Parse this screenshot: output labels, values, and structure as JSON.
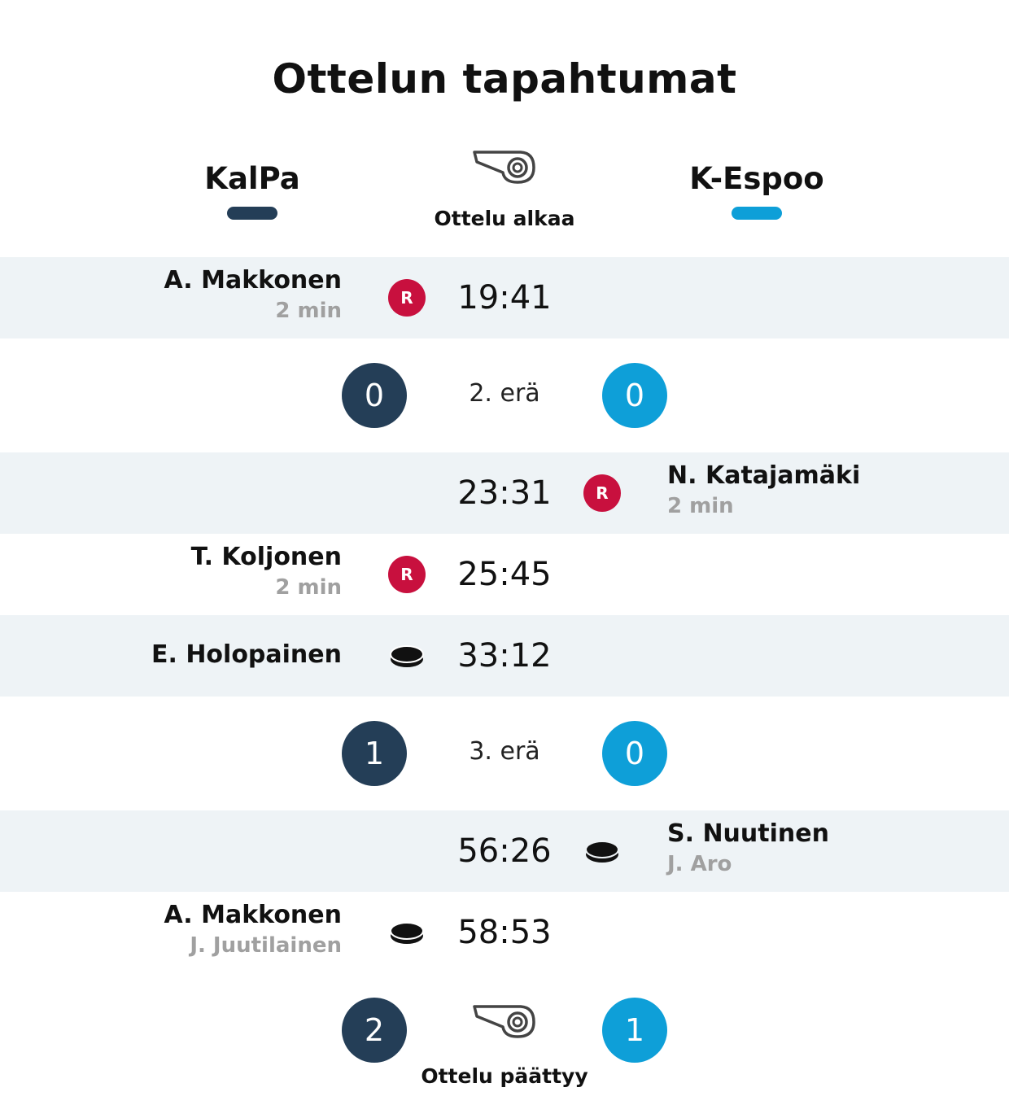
{
  "title": "Ottelun tapahtumat",
  "teams": {
    "home": {
      "name": "KalPa",
      "color": "#243e57"
    },
    "away": {
      "name": "K-Espoo",
      "color": "#0e9fd8"
    }
  },
  "start": {
    "label": "Ottelu alkaa",
    "icon": "whistle-icon"
  },
  "events": [
    {
      "time": "19:41",
      "side": "home",
      "type": "penalty",
      "badge": "R",
      "player": "A. Makkonen",
      "detail": "2 min"
    },
    {
      "time": "23:31",
      "side": "away",
      "type": "penalty",
      "badge": "R",
      "player": "N. Katajamäki",
      "detail": "2 min"
    },
    {
      "time": "25:45",
      "side": "home",
      "type": "penalty",
      "badge": "R",
      "player": "T. Koljonen",
      "detail": "2 min"
    },
    {
      "time": "33:12",
      "side": "home",
      "type": "goal",
      "player": "E. Holopainen",
      "detail": ""
    },
    {
      "time": "56:26",
      "side": "away",
      "type": "goal",
      "player": "S. Nuutinen",
      "detail": "J. Aro"
    },
    {
      "time": "58:53",
      "side": "home",
      "type": "goal",
      "player": "A. Makkonen",
      "detail": "J. Juutilainen"
    }
  ],
  "periods": [
    {
      "label": "2. erä",
      "home_score": "0",
      "away_score": "0"
    },
    {
      "label": "3. erä",
      "home_score": "1",
      "away_score": "0"
    }
  ],
  "end": {
    "label": "Ottelu päättyy",
    "home_score": "2",
    "away_score": "1",
    "icon": "whistle-icon"
  }
}
